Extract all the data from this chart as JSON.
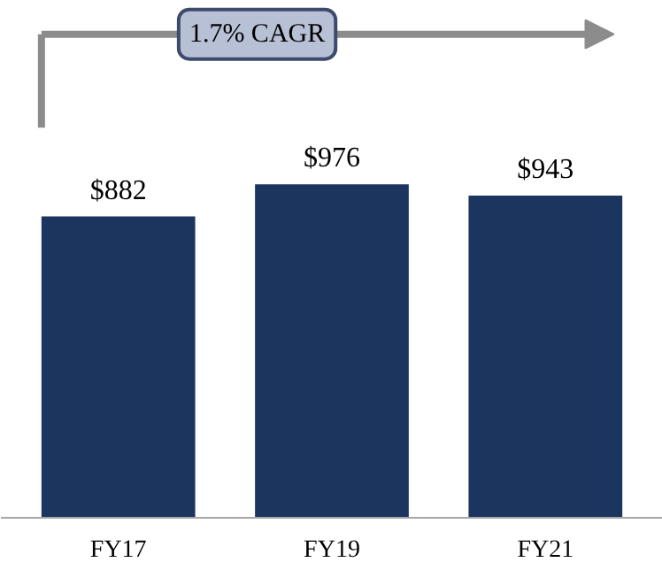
{
  "chart_data": {
    "type": "bar",
    "categories": [
      "FY17",
      "FY19",
      "FY21"
    ],
    "values": [
      882,
      976,
      943
    ],
    "value_labels": [
      "$882",
      "$976",
      "$943"
    ],
    "color": "#1c355e",
    "annotations": [
      "1.7% CAGR"
    ]
  }
}
